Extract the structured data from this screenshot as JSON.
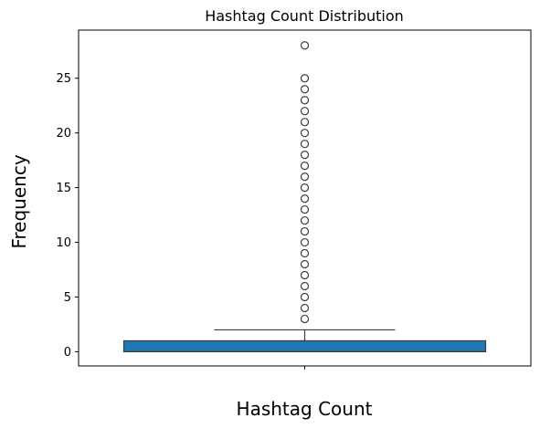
{
  "chart_data": {
    "type": "box",
    "title": "Hashtag Count Distribution",
    "xlabel": "Hashtag Count",
    "ylabel": "Frequency",
    "ylim": [
      -1.3,
      29.4
    ],
    "yticks": [
      0,
      5,
      10,
      15,
      20,
      25
    ],
    "grid": false,
    "box": {
      "min": 0,
      "q1": 0,
      "median": 0,
      "q3": 1,
      "whisker_low": 0,
      "whisker_high": 2,
      "fill_color": "#1f77b4",
      "line_color": "#3d3d3d"
    },
    "outliers": [
      3,
      4,
      5,
      6,
      7,
      8,
      9,
      10,
      11,
      12,
      13,
      14,
      15,
      16,
      17,
      18,
      19,
      20,
      21,
      22,
      23,
      24,
      25,
      28
    ]
  }
}
